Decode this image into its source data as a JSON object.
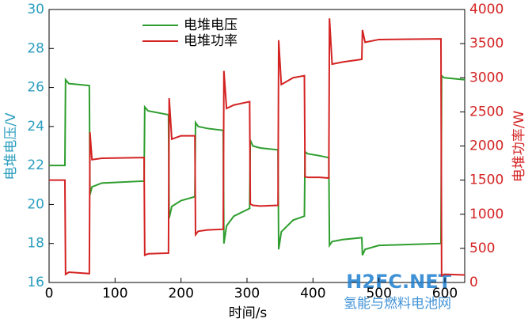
{
  "chart_data": {
    "type": "line",
    "xlabel": "时间/s",
    "ylabel": "电堆电压/V",
    "y2label": "电堆功率/W",
    "watermark": "H2FC.NET",
    "watermark_sub": "氢能与燃料电池网",
    "legend": "top",
    "x": [
      0,
      24,
      25,
      30,
      61,
      62,
      65,
      80,
      144,
      145,
      150,
      181,
      182,
      186,
      200,
      221,
      222,
      226,
      240,
      264,
      265,
      269,
      280,
      304,
      305,
      309,
      320,
      347,
      348,
      352,
      370,
      387,
      388,
      392,
      410,
      424,
      425,
      429,
      445,
      474,
      475,
      479,
      500,
      594,
      595,
      599,
      630
    ],
    "series": [
      {
        "name": "电堆电压",
        "color": "#2e9e2e",
        "axis": "y",
        "values": [
          22.0,
          22.0,
          26.4,
          26.2,
          26.1,
          20.5,
          20.9,
          21.1,
          21.2,
          25.0,
          24.8,
          24.6,
          19.3,
          19.9,
          20.2,
          20.4,
          24.2,
          24.0,
          23.9,
          23.8,
          18.0,
          18.9,
          19.4,
          19.8,
          23.3,
          23.0,
          22.9,
          22.8,
          17.7,
          18.6,
          19.2,
          19.4,
          22.7,
          22.6,
          22.5,
          22.4,
          17.9,
          18.1,
          18.2,
          18.3,
          17.4,
          17.7,
          17.9,
          18.0,
          26.6,
          26.5,
          26.4
        ]
      },
      {
        "name": "电堆功率",
        "color": "#d42323",
        "axis": "y2",
        "values": [
          1500,
          1500,
          120,
          150,
          130,
          2200,
          1800,
          1820,
          1830,
          400,
          420,
          430,
          2700,
          2100,
          2150,
          2150,
          700,
          750,
          770,
          780,
          3100,
          2550,
          2600,
          2650,
          1150,
          1130,
          1120,
          1130,
          3550,
          2900,
          3000,
          3030,
          1550,
          1540,
          1540,
          1530,
          3870,
          3200,
          3230,
          3270,
          3700,
          3520,
          3560,
          3570,
          100,
          120,
          110
        ]
      }
    ],
    "xlim": [
      0,
      630
    ],
    "xticks": [
      0,
      100,
      200,
      300,
      400,
      500,
      600
    ],
    "ylim": [
      16,
      30
    ],
    "yticks": [
      16,
      18,
      20,
      22,
      24,
      26,
      28,
      30
    ],
    "ycolor": "#2a9dbf",
    "y2lim": [
      0,
      4000
    ],
    "y2ticks": [
      0,
      500,
      1000,
      1500,
      2000,
      2500,
      3000,
      3500,
      4000
    ],
    "y2color": "#d42323"
  }
}
